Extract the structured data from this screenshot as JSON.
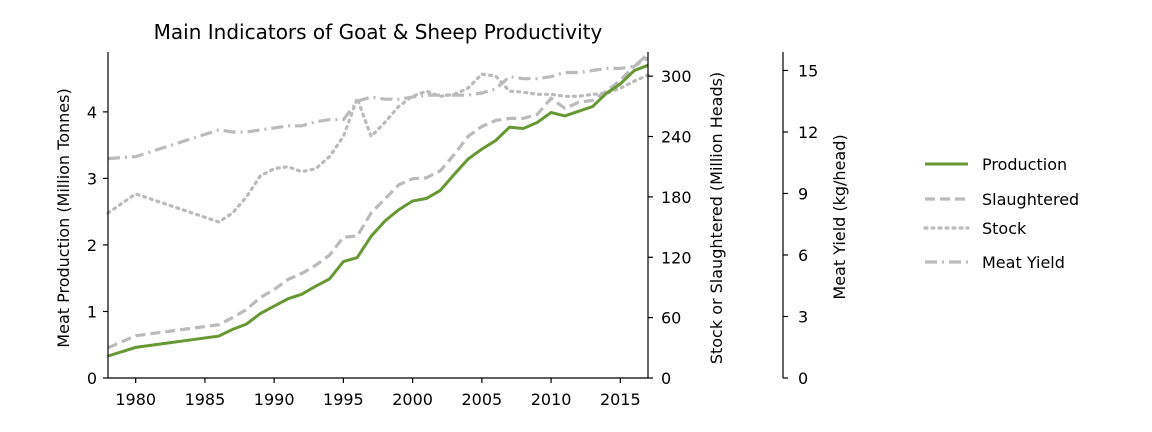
{
  "chart_data": {
    "type": "line",
    "title": "Main Indicators of Goat & Sheep Productivity",
    "xlabel": "",
    "xlim": [
      1978,
      2017
    ],
    "x_ticks": [
      1980,
      1985,
      1990,
      1995,
      2000,
      2005,
      2010,
      2015
    ],
    "axes": {
      "left": {
        "label": "Meat Production (Million Tonnes)",
        "range": [
          0,
          4.9
        ],
        "ticks": [
          0,
          1,
          2,
          3,
          4
        ]
      },
      "right": {
        "label": "Stock or Slaughtered (Million Heads)",
        "range": [
          0,
          324
        ],
        "ticks": [
          0,
          60,
          120,
          180,
          240,
          300
        ]
      },
      "far_right": {
        "label": "Meat Yield (kg/head)",
        "range": [
          0,
          15.9
        ],
        "ticks": [
          0,
          3,
          6,
          9,
          12,
          15
        ]
      }
    },
    "legend_position": "right",
    "series": [
      {
        "name": "Production",
        "axis": "left",
        "color": "#669933",
        "style": "solid",
        "x": [
          1978,
          1980,
          1986,
          1987,
          1988,
          1989,
          1990,
          1991,
          1992,
          1993,
          1994,
          1995,
          1996,
          1997,
          1998,
          1999,
          2000,
          2001,
          2002,
          2003,
          2004,
          2005,
          2006,
          2007,
          2008,
          2009,
          2010,
          2011,
          2012,
          2013,
          2014,
          2015,
          2016,
          2017
        ],
        "values": [
          0.33,
          0.46,
          0.63,
          0.73,
          0.81,
          0.97,
          1.08,
          1.19,
          1.26,
          1.38,
          1.49,
          1.75,
          1.81,
          2.13,
          2.36,
          2.53,
          2.66,
          2.7,
          2.82,
          3.06,
          3.29,
          3.44,
          3.57,
          3.77,
          3.75,
          3.84,
          3.99,
          3.94,
          4.01,
          4.08,
          4.28,
          4.42,
          4.62,
          4.7
        ]
      },
      {
        "name": "Slaughtered",
        "axis": "right",
        "color": "#bbbbbb",
        "style": "dashed",
        "x": [
          1978,
          1980,
          1986,
          1987,
          1988,
          1989,
          1990,
          1991,
          1992,
          1993,
          1994,
          1995,
          1996,
          1997,
          1998,
          1999,
          2000,
          2001,
          2002,
          2003,
          2004,
          2005,
          2006,
          2007,
          2008,
          2009,
          2010,
          2011,
          2012,
          2013,
          2014,
          2015,
          2016,
          2017
        ],
        "values": [
          30,
          42,
          53,
          60,
          68,
          80,
          88,
          98,
          104,
          112,
          122,
          140,
          141,
          164,
          178,
          192,
          198,
          199,
          206,
          222,
          240,
          250,
          256,
          258,
          258,
          262,
          278,
          268,
          274,
          276,
          285,
          296,
          310,
          318
        ]
      },
      {
        "name": "Stock",
        "axis": "right",
        "color": "#bbbbbb",
        "style": "dotted",
        "x": [
          1978,
          1980,
          1986,
          1987,
          1988,
          1989,
          1990,
          1991,
          1992,
          1993,
          1994,
          1995,
          1996,
          1997,
          1998,
          1999,
          2000,
          2001,
          2002,
          2003,
          2004,
          2005,
          2006,
          2007,
          2008,
          2009,
          2010,
          2011,
          2012,
          2013,
          2014,
          2015,
          2016,
          2017
        ],
        "values": [
          164,
          183,
          155,
          164,
          180,
          201,
          208,
          210,
          205,
          208,
          220,
          240,
          278,
          240,
          254,
          270,
          280,
          285,
          280,
          282,
          288,
          302,
          300,
          285,
          284,
          282,
          282,
          280,
          280,
          282,
          283,
          288,
          295,
          301
        ]
      },
      {
        "name": "Meat Yield",
        "axis": "far_right",
        "color": "#bbbbbb",
        "style": "dashdot",
        "x": [
          1978,
          1980,
          1986,
          1987,
          1988,
          1989,
          1990,
          1991,
          1992,
          1993,
          1994,
          1995,
          1996,
          1997,
          1998,
          1999,
          2000,
          2001,
          2002,
          2003,
          2004,
          2005,
          2006,
          2007,
          2008,
          2009,
          2010,
          2011,
          2012,
          2013,
          2014,
          2015,
          2016,
          2017
        ],
        "values": [
          10.7,
          10.8,
          12.1,
          12.0,
          12.0,
          12.1,
          12.2,
          12.3,
          12.3,
          12.5,
          12.6,
          12.6,
          13.5,
          13.7,
          13.6,
          13.6,
          13.7,
          13.8,
          13.8,
          13.8,
          13.8,
          13.9,
          14.1,
          14.7,
          14.6,
          14.6,
          14.7,
          14.9,
          14.9,
          15.0,
          15.1,
          15.1,
          15.2,
          15.8
        ]
      }
    ]
  }
}
